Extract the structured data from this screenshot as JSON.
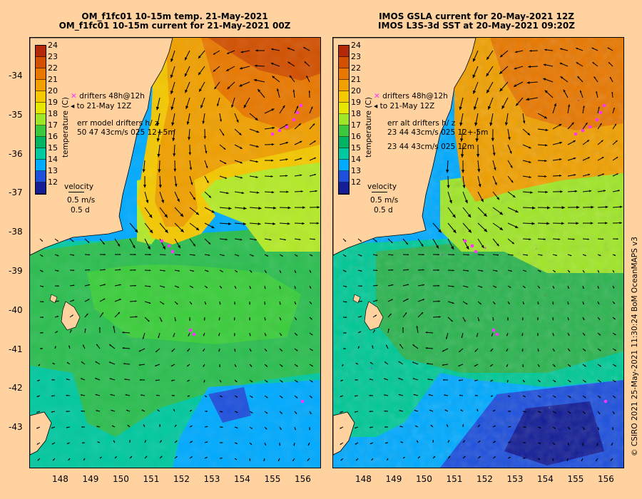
{
  "left": {
    "title_line1": "OM_f1fc01 10-15m temp. 21-May-2021",
    "title_line2": "OM_f1fc01 10-15m current for 21-May-2021 00Z",
    "legend_drifters": "drifters 48h@12h",
    "legend_to": "to 21-May 12Z",
    "legend_err_title": "err model drifters h/ z",
    "legend_err_value": "50 47 43cm/s 025 12+5m",
    "legend_err_value2": ""
  },
  "right": {
    "title_line1": "IMOS GSLA current for 20-May-2021 12Z",
    "title_line2": "IMOS L3S-3d SST at 20-May-2021 09:20Z",
    "legend_drifters": "drifters 48h@12h",
    "legend_to": "to 21-May 12Z",
    "legend_err_title": "err alt drifters h/ z",
    "legend_err_value": "23 44 43cm/s 025 12+-5m",
    "legend_err_value2": "23 44 43cm/s 025 12m"
  },
  "colorbar": {
    "title": "temperature (C)",
    "ticks": [
      "24",
      "23",
      "22",
      "21",
      "20",
      "19",
      "18",
      "17",
      "16",
      "15",
      "14",
      "13",
      "12"
    ],
    "colors": [
      "#b4280a",
      "#d25000",
      "#e87800",
      "#f0a000",
      "#f5c800",
      "#e6e600",
      "#a0e628",
      "#3cc83c",
      "#00b464",
      "#00c8a0",
      "#00aaff",
      "#1e50dc",
      "#141e96"
    ]
  },
  "velocity": {
    "label": "velocity",
    "scale": "0.5 m/s",
    "time": "0.5 d"
  },
  "lat_ticks": [
    "-34",
    "-35",
    "-36",
    "-37",
    "-38",
    "-39",
    "-40",
    "-41",
    "-42",
    "-43"
  ],
  "lon_ticks": [
    "148",
    "149",
    "150",
    "151",
    "152",
    "153",
    "154",
    "155",
    "156"
  ],
  "credit": "© CSIRO 2021   25-May-2021 11:30:24 BoM OceanMAPS v3",
  "colors": {
    "land": "#ffd2a0",
    "drifter": "#ff32ff",
    "arrow": "#000000"
  }
}
